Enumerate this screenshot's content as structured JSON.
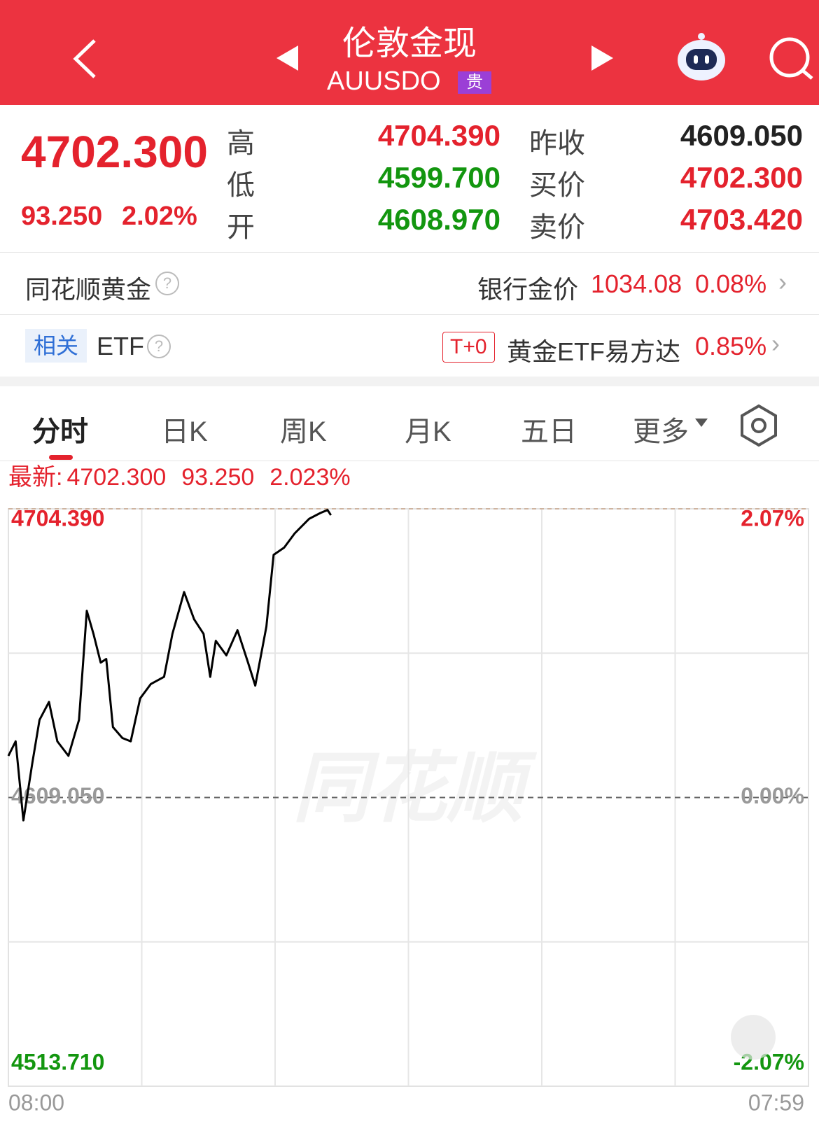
{
  "header": {
    "title": "伦敦金现",
    "code": "AUUSDO",
    "tag": "贵"
  },
  "quote": {
    "price": "4702.300",
    "change": "93.250",
    "change_pct": "2.02%",
    "fields": [
      {
        "label": "高",
        "value": "4704.390"
      },
      {
        "label": "低",
        "value": "4599.700"
      },
      {
        "label": "开",
        "value": "4608.970"
      },
      {
        "label": "昨收",
        "value": "4609.050"
      },
      {
        "label": "买价",
        "value": "4702.300"
      },
      {
        "label": "卖价",
        "value": "4703.420"
      }
    ]
  },
  "gold_row": {
    "label": "同花顺黄金",
    "bank_label": "银行金价",
    "bank_price": "1034.08",
    "bank_change": "0.08%"
  },
  "etf_row": {
    "tag": "相关",
    "label": "ETF",
    "badge": "T+0",
    "fund": "黄金ETF易方达",
    "change": "0.85%"
  },
  "tabs": [
    "分时",
    "日K",
    "周K",
    "月K",
    "五日",
    "更多"
  ],
  "chart_data": {
    "type": "line",
    "latest_label": "最新:",
    "latest_price": "4702.300",
    "latest_change": "93.250",
    "latest_pct": "2.023%",
    "watermark": "同花顺",
    "x": [
      0,
      13,
      27,
      43,
      56,
      73,
      88,
      108,
      127,
      141,
      153,
      166,
      176,
      188,
      205,
      220,
      237,
      256,
      280,
      295,
      316,
      334,
      351,
      363,
      373,
      392,
      412,
      431,
      444,
      464,
      477,
      496,
      515,
      541,
      561,
      574,
      580
    ],
    "series": [
      {
        "color": "#000000",
        "values": [
          4622.8,
          4627.6,
          4601.5,
          4620.4,
          4634.7,
          4640.6,
          4627.6,
          4622.8,
          4634.7,
          4670.7,
          4663.1,
          4653.6,
          4654.8,
          4632.3,
          4628.7,
          4627.6,
          4641.8,
          4646.5,
          4648.9,
          4663.1,
          4676.9,
          4667.9,
          4663.1,
          4648.9,
          4660.8,
          4656.0,
          4664.3,
          4653.6,
          4646.0,
          4665.5,
          4689.2,
          4691.6,
          4696.3,
          4701.1,
          4703.0,
          4704.0,
          4702.3
        ]
      }
    ],
    "xlim": [
      0,
      1439
    ],
    "xticks": [
      {
        "value": 0,
        "label": "08:00"
      },
      {
        "value": 1439,
        "label": "07:59"
      }
    ],
    "ylim": [
      4513.71,
      4704.39
    ],
    "yticks": [
      {
        "value": 4513.71,
        "label": "4513.710"
      },
      {
        "value": 4609.05,
        "label": "4609.050"
      },
      {
        "value": 4704.39,
        "label": "4704.390"
      }
    ],
    "y2lim": [
      -2.07,
      2.07
    ],
    "y2ticks": [
      {
        "value": -2.07,
        "label": "-2.07%"
      },
      {
        "value": 0,
        "label": "0.00%"
      },
      {
        "value": 2.07,
        "label": "2.07%"
      }
    ]
  }
}
